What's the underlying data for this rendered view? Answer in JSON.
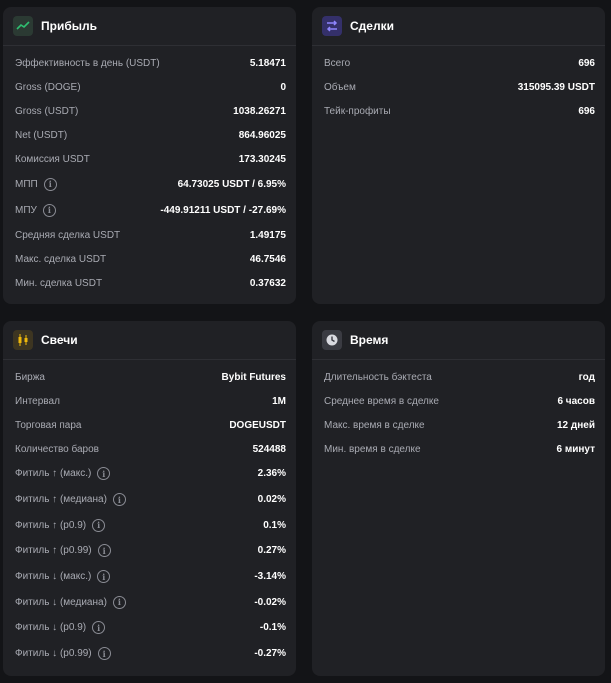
{
  "profit": {
    "title": "Прибыль",
    "rows": [
      {
        "label": "Эффективность в день (USDT)",
        "value": "5.18471"
      },
      {
        "label": "Gross (DOGE)",
        "value": "0"
      },
      {
        "label": "Gross (USDT)",
        "value": "1038.26271"
      },
      {
        "label": "Net (USDT)",
        "value": "864.96025"
      },
      {
        "label": "Комиссия USDT",
        "value": "173.30245"
      },
      {
        "label": "МПП",
        "value": "64.73025 USDT / 6.95%"
      },
      {
        "label": "МПУ",
        "value": "-449.91211 USDT / -27.69%"
      },
      {
        "label": "Средняя сделка USDT",
        "value": "1.49175"
      },
      {
        "label": "Макс. сделка USDT",
        "value": "46.7546"
      },
      {
        "label": "Мин. сделка USDT",
        "value": "0.37632"
      }
    ]
  },
  "deals": {
    "title": "Сделки",
    "rows": [
      {
        "label": "Всего",
        "value": "696"
      },
      {
        "label": "Объем",
        "value": "315095.39 USDT"
      },
      {
        "label": "Тейк-профиты",
        "value": "696"
      }
    ]
  },
  "candles": {
    "title": "Свечи",
    "rows": [
      {
        "label": "Биржа",
        "value": "Bybit Futures"
      },
      {
        "label": "Интервал",
        "value": "1M"
      },
      {
        "label": "Торговая пара",
        "value": "DOGEUSDT"
      },
      {
        "label": "Количество баров",
        "value": "524488"
      },
      {
        "label": "Фитиль ↑ (макс.)",
        "value": "2.36%"
      },
      {
        "label": "Фитиль ↑ (медиана)",
        "value": "0.02%"
      },
      {
        "label": "Фитиль ↑ (p0.9)",
        "value": "0.1%"
      },
      {
        "label": "Фитиль ↑ (p0.99)",
        "value": "0.27%"
      },
      {
        "label": "Фитиль ↓ (макс.)",
        "value": "-3.14%"
      },
      {
        "label": "Фитиль ↓ (медиана)",
        "value": "-0.02%"
      },
      {
        "label": "Фитиль ↓ (p0.9)",
        "value": "-0.1%"
      },
      {
        "label": "Фитиль ↓ (p0.99)",
        "value": "-0.27%"
      }
    ]
  },
  "time": {
    "title": "Время",
    "rows": [
      {
        "label": "Длительность бэктеста",
        "value": "год"
      },
      {
        "label": "Среднее время в сделке",
        "value": "6 часов"
      },
      {
        "label": "Макс. время в сделке",
        "value": "12 дней"
      },
      {
        "label": "Мин. время в сделке",
        "value": "6 минут"
      }
    ]
  },
  "icons": {
    "profit": "chart-line-icon",
    "deals": "swap-arrows-icon",
    "candles": "candlestick-icon",
    "time": "clock-icon",
    "info": "info-icon"
  },
  "colors": {
    "background": "#131417",
    "card": "#202125",
    "accent_green": "#2fbf71",
    "accent_purple": "#5b4fd6",
    "accent_yellow": "#f0b90b"
  }
}
